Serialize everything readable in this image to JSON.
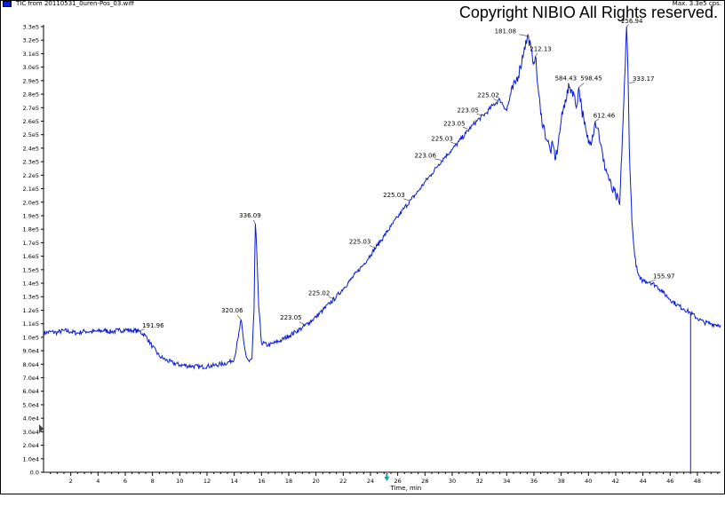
{
  "header": {
    "trace_label": "TIC from 20110531_0uren-Pos_03.wiff",
    "max_label": "Max. 3.3e5 cps.",
    "copyright": "Copyright NIBIO All Rights reserved."
  },
  "colors": {
    "trace": "#0a1bd6",
    "axis": "#000000",
    "marker": "#12a7a7"
  },
  "chart_data": {
    "type": "line",
    "title": "",
    "xlabel": "Time, min",
    "ylabel": "",
    "xlim": [
      0,
      49.7
    ],
    "ylim": [
      0,
      330000
    ],
    "x_ticks": [
      2,
      4,
      6,
      8,
      10,
      12,
      14,
      16,
      18,
      20,
      22,
      24,
      26,
      28,
      30,
      32,
      34,
      36,
      38,
      40,
      42,
      44,
      46,
      48
    ],
    "x_tick_labels": [
      "2",
      "4",
      "6",
      "8",
      "10",
      "12",
      "14",
      "16",
      "18",
      "20",
      "22",
      "24",
      "26",
      "28",
      "30",
      "32",
      "34",
      "36",
      "38",
      "40",
      "42",
      "44",
      "46",
      "48"
    ],
    "y_ticks": [
      0,
      10000,
      20000,
      30000,
      40000,
      50000,
      60000,
      70000,
      80000,
      90000,
      100000,
      110000,
      120000,
      130000,
      140000,
      150000,
      160000,
      170000,
      180000,
      190000,
      200000,
      210000,
      220000,
      230000,
      240000,
      250000,
      260000,
      270000,
      280000,
      290000,
      300000,
      310000,
      320000,
      330000
    ],
    "y_tick_labels": [
      "0.0",
      "1.0e4",
      "2.0e4",
      "3.0e4",
      "4.0e4",
      "5.0e4",
      "6.0e4",
      "7.0e4",
      "8.0e4",
      "9.0e4",
      "1.0e5",
      "1.1e5",
      "1.2e5",
      "1.3e5",
      "1.4e5",
      "1.5e5",
      "1.6e5",
      "1.7e5",
      "1.8e5",
      "1.9e5",
      "2.0e5",
      "2.1e5",
      "2.2e5",
      "2.3e5",
      "2.4e5",
      "2.5e5",
      "2.6e5",
      "2.7e5",
      "2.8e5",
      "2.9e5",
      "3.0e5",
      "3.1e5",
      "3.2e5",
      "3.3e5"
    ],
    "series": [
      {
        "points": [
          [
            0.0,
            103000
          ],
          [
            0.5,
            104000
          ],
          [
            1.0,
            103500
          ],
          [
            1.5,
            105000
          ],
          [
            2.0,
            104000
          ],
          [
            2.5,
            103000
          ],
          [
            3.0,
            104500
          ],
          [
            3.5,
            104000
          ],
          [
            4.0,
            104500
          ],
          [
            4.5,
            105000
          ],
          [
            5.0,
            104000
          ],
          [
            5.5,
            105000
          ],
          [
            6.0,
            105500
          ],
          [
            6.5,
            105000
          ],
          [
            7.0,
            104500
          ],
          [
            7.5,
            101000
          ],
          [
            8.0,
            93000
          ],
          [
            8.5,
            86000
          ],
          [
            9.0,
            83000
          ],
          [
            9.5,
            81000
          ],
          [
            10.0,
            79500
          ],
          [
            10.5,
            79000
          ],
          [
            11.0,
            78500
          ],
          [
            11.5,
            78000
          ],
          [
            12.0,
            78500
          ],
          [
            12.5,
            79000
          ],
          [
            13.0,
            80000
          ],
          [
            13.5,
            81000
          ],
          [
            14.0,
            84000
          ],
          [
            14.3,
            100000
          ],
          [
            14.5,
            113000
          ],
          [
            14.7,
            96000
          ],
          [
            14.9,
            85000
          ],
          [
            15.1,
            82000
          ],
          [
            15.3,
            84000
          ],
          [
            15.45,
            120000
          ],
          [
            15.55,
            184000
          ],
          [
            15.65,
            165000
          ],
          [
            15.8,
            122000
          ],
          [
            16.0,
            96000
          ],
          [
            16.5,
            94000
          ],
          [
            17.0,
            96000
          ],
          [
            17.5,
            98000
          ],
          [
            18.0,
            101000
          ],
          [
            18.5,
            104000
          ],
          [
            19.0,
            107000
          ],
          [
            19.5,
            111000
          ],
          [
            20.0,
            115000
          ],
          [
            20.5,
            120000
          ],
          [
            21.0,
            125000
          ],
          [
            21.5,
            130000
          ],
          [
            22.0,
            136000
          ],
          [
            22.5,
            142000
          ],
          [
            23.0,
            148000
          ],
          [
            23.5,
            154000
          ],
          [
            24.0,
            161000
          ],
          [
            24.5,
            168000
          ],
          [
            25.0,
            175000
          ],
          [
            25.5,
            182000
          ],
          [
            26.0,
            189000
          ],
          [
            26.5,
            196000
          ],
          [
            27.0,
            202000
          ],
          [
            27.5,
            208000
          ],
          [
            28.0,
            215000
          ],
          [
            28.5,
            221000
          ],
          [
            29.0,
            228000
          ],
          [
            29.5,
            234000
          ],
          [
            30.0,
            239000
          ],
          [
            30.5,
            245000
          ],
          [
            31.0,
            251000
          ],
          [
            31.5,
            257000
          ],
          [
            32.0,
            262000
          ],
          [
            32.5,
            266000
          ],
          [
            33.0,
            272000
          ],
          [
            33.5,
            276000
          ],
          [
            34.0,
            268000
          ],
          [
            34.3,
            280000
          ],
          [
            34.7,
            290000
          ],
          [
            35.0,
            300000
          ],
          [
            35.3,
            315000
          ],
          [
            35.6,
            323000
          ],
          [
            35.9,
            305000
          ],
          [
            36.1,
            308000
          ],
          [
            36.3,
            285000
          ],
          [
            36.5,
            265000
          ],
          [
            36.8,
            252000
          ],
          [
            37.0,
            245000
          ],
          [
            37.2,
            238000
          ],
          [
            37.4,
            242000
          ],
          [
            37.6,
            232000
          ],
          [
            37.8,
            245000
          ],
          [
            38.0,
            260000
          ],
          [
            38.3,
            276000
          ],
          [
            38.6,
            285000
          ],
          [
            38.9,
            282000
          ],
          [
            39.1,
            270000
          ],
          [
            39.3,
            285000
          ],
          [
            39.5,
            270000
          ],
          [
            39.7,
            258000
          ],
          [
            39.9,
            248000
          ],
          [
            40.1,
            243000
          ],
          [
            40.3,
            250000
          ],
          [
            40.5,
            260000
          ],
          [
            40.7,
            255000
          ],
          [
            40.9,
            243000
          ],
          [
            41.1,
            230000
          ],
          [
            41.4,
            221000
          ],
          [
            41.7,
            210000
          ],
          [
            42.0,
            205000
          ],
          [
            42.3,
            198000
          ],
          [
            42.5,
            250000
          ],
          [
            42.7,
            300000
          ],
          [
            42.8,
            330000
          ],
          [
            42.9,
            300000
          ],
          [
            43.0,
            240000
          ],
          [
            43.2,
            185000
          ],
          [
            43.4,
            160000
          ],
          [
            43.6,
            148000
          ],
          [
            43.8,
            143000
          ],
          [
            44.0,
            142000
          ],
          [
            44.5,
            141000
          ],
          [
            45.0,
            138000
          ],
          [
            45.5,
            133000
          ],
          [
            46.0,
            128000
          ],
          [
            46.5,
            124000
          ],
          [
            47.0,
            121000
          ],
          [
            47.5,
            118000
          ],
          [
            48.0,
            114000
          ],
          [
            48.5,
            111000
          ],
          [
            49.0,
            110000
          ],
          [
            49.7,
            109000
          ]
        ]
      }
    ],
    "vline": {
      "x": 47.5,
      "y": 118000
    },
    "marker_x": 25.2,
    "annotations": [
      {
        "label": "191.96",
        "x": 7.0,
        "y": 104500
      },
      {
        "label": "320.06",
        "x": 14.5,
        "y": 113000
      },
      {
        "label": "336.09",
        "x": 15.55,
        "y": 184000
      },
      {
        "label": "223.05",
        "x": 19.2,
        "y": 109000
      },
      {
        "label": "225.02",
        "x": 21.4,
        "y": 128000
      },
      {
        "label": "225.03",
        "x": 24.4,
        "y": 166000
      },
      {
        "label": "225.03",
        "x": 26.9,
        "y": 201000
      },
      {
        "label": "223.06",
        "x": 29.2,
        "y": 231000
      },
      {
        "label": "225.03",
        "x": 30.3,
        "y": 243000
      },
      {
        "label": "223.05",
        "x": 31.2,
        "y": 254000
      },
      {
        "label": "223.05",
        "x": 32.2,
        "y": 264000
      },
      {
        "label": "225.02",
        "x": 33.3,
        "y": 275000
      },
      {
        "label": "181.08",
        "x": 35.6,
        "y": 323000
      },
      {
        "label": "212.13",
        "x": 36.1,
        "y": 308000
      },
      {
        "label": "584.43",
        "x": 38.6,
        "y": 285000
      },
      {
        "label": "598.45",
        "x": 39.3,
        "y": 285000
      },
      {
        "label": "612.46",
        "x": 40.5,
        "y": 260000
      },
      {
        "label": "256.94",
        "x": 42.8,
        "y": 330000
      },
      {
        "label": "333.17",
        "x": 43.0,
        "y": 288000
      },
      {
        "label": "155.97",
        "x": 44.5,
        "y": 141000
      }
    ]
  }
}
